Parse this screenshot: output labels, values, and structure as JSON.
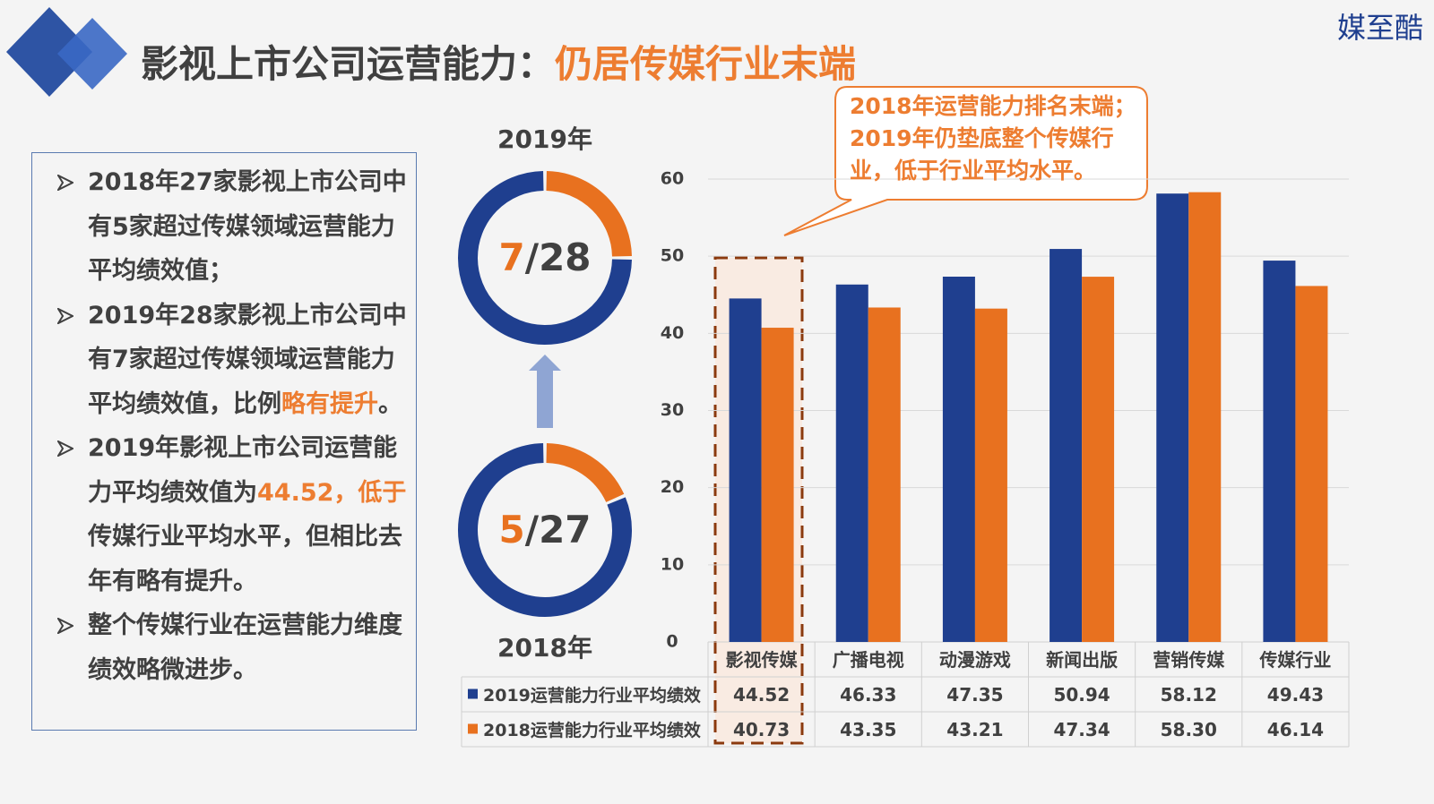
{
  "header": {
    "title": "影视上市公司运营能力：",
    "title_highlight": "仍居传媒行业末端",
    "logo": "媒至酷"
  },
  "bullets": [
    {
      "segments": [
        {
          "text": "2018年27家影视上市公司中有5家超过传媒领域运营能力平均绩效值；"
        }
      ]
    },
    {
      "segments": [
        {
          "text": "2019年28家影视上市公司中有7家超过传媒领域运营能力平均绩效值，比例"
        },
        {
          "text": "略有提升",
          "color": "#ed7d31"
        },
        {
          "text": "。"
        }
      ]
    },
    {
      "segments": [
        {
          "text": "2019年影视上市公司运营能力平均绩效值为"
        },
        {
          "text": "44.52，低于",
          "color": "#ed7d31"
        },
        {
          "text": "传媒行业平均水平，但相比去年有略有提升。"
        }
      ]
    },
    {
      "segments": [
        {
          "text": "整个传媒行业在运营能力维度绩效略微进步。"
        }
      ]
    }
  ],
  "donuts": [
    {
      "label": "2019年",
      "numerator": 7,
      "separator": "/",
      "denominator": 28
    },
    {
      "label": "2018年",
      "numerator": 5,
      "separator": "/",
      "denominator": 27
    }
  ],
  "chart_data": {
    "type": "bar",
    "annotation": "2018年运营能力排名末端；2019年仍垫底整个传媒行业，低于行业平均水平。",
    "categories": [
      "影视传媒",
      "广播电视",
      "动漫游戏",
      "新闻出版",
      "营销传媒",
      "传媒行业"
    ],
    "series": [
      {
        "name": "2019运营能力行业平均绩效",
        "color": "#1f3f8f",
        "values": [
          44.52,
          46.33,
          47.35,
          50.94,
          58.12,
          49.43
        ],
        "value_labels": [
          "44.52",
          "46.33",
          "47.35",
          "50.94",
          "58.12",
          "49.43"
        ]
      },
      {
        "name": "2018运营能力行业平均绩效",
        "color": "#e8711f",
        "values": [
          40.73,
          43.35,
          43.21,
          47.34,
          58.3,
          46.14
        ],
        "value_labels": [
          "40.73",
          "43.35",
          "43.21",
          "47.34",
          "58.30",
          "46.14"
        ]
      }
    ],
    "ylim": [
      0,
      60
    ],
    "yticks": [
      0,
      10,
      20,
      30,
      40,
      50,
      60
    ],
    "grid": true
  }
}
